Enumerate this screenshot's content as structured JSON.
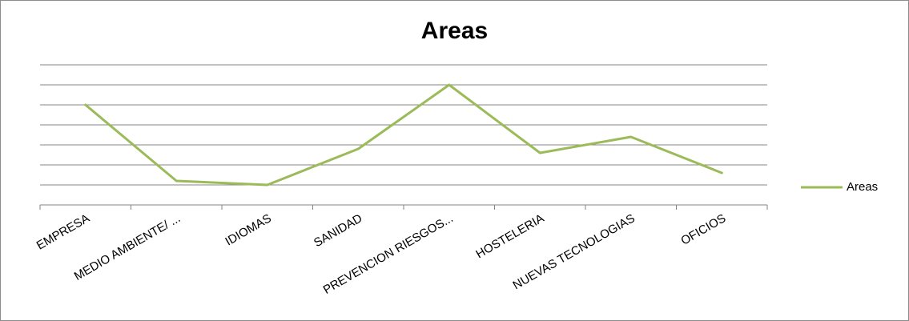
{
  "chart_data": {
    "type": "line",
    "title": "Areas",
    "xlabel": "",
    "ylabel": "",
    "categories": [
      "EMPRESA",
      "MEDIO AMBIENTE/ ...",
      "IDIOMAS",
      "SANIDAD",
      "PREVENCION RIESGOS...",
      "HOSTELERIA",
      "NUEVAS TECNOLOGIAS",
      "OFICIOS"
    ],
    "series": [
      {
        "name": "Areas",
        "values": [
          5,
          1.2,
          1,
          2.8,
          6,
          2.6,
          3.4,
          1.6
        ],
        "color": "#9bbb59"
      }
    ],
    "ylim": [
      0,
      7
    ],
    "y_tick_step": 1,
    "y_tick_labels_visible": false,
    "grid": true,
    "grid_color": "#868686",
    "legend": "right"
  }
}
